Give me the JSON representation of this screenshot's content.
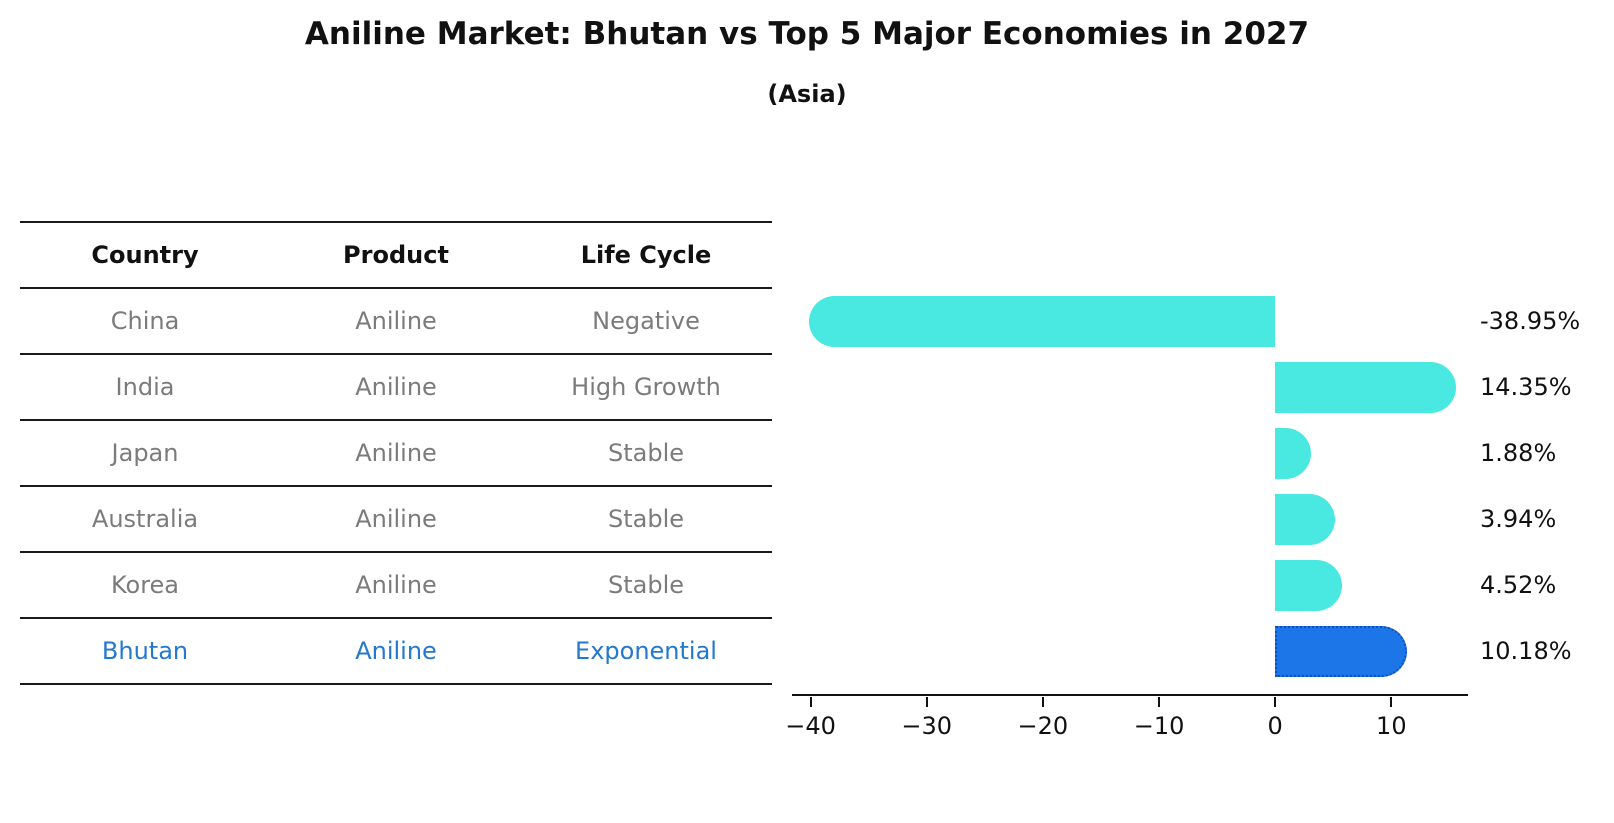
{
  "header": {
    "title": "Aniline Market: Bhutan vs Top 5 Major Economies in 2027",
    "subtitle": "(Asia)"
  },
  "table": {
    "headers": [
      "Country",
      "Product",
      "Life Cycle"
    ],
    "rows": [
      {
        "country": "China",
        "product": "Aniline",
        "life_cycle": "Negative"
      },
      {
        "country": "India",
        "product": "Aniline",
        "life_cycle": "High Growth"
      },
      {
        "country": "Japan",
        "product": "Aniline",
        "life_cycle": "Stable"
      },
      {
        "country": "Australia",
        "product": "Aniline",
        "life_cycle": "Stable"
      },
      {
        "country": "Korea",
        "product": "Aniline",
        "life_cycle": "Stable"
      },
      {
        "country": "Bhutan",
        "product": "Aniline",
        "life_cycle": "Exponential"
      }
    ],
    "highlight_row": "Bhutan",
    "row_text_color": "#7b7b7b",
    "highlight_text_color": "#2478CE"
  },
  "chart_data": {
    "type": "bar",
    "orientation": "horizontal",
    "categories": [
      "China",
      "India",
      "Japan",
      "Australia",
      "Korea",
      "Bhutan"
    ],
    "values": [
      -38.95,
      14.35,
      1.88,
      3.94,
      4.52,
      10.18
    ],
    "value_labels": [
      "-38.95%",
      "14.35%",
      "1.88%",
      "3.94%",
      "4.52%",
      "10.18%"
    ],
    "title": "Aniline Market: Bhutan vs Top 5 Major Economies in 2027",
    "subtitle": "(Asia)",
    "xlabel": "",
    "ylabel": "",
    "xlim": [
      -41.6,
      16.6
    ],
    "x_ticks": [
      -40,
      -30,
      -20,
      -10,
      0,
      10
    ],
    "x_tick_labels": [
      "−40",
      "−30",
      "−20",
      "−10",
      "0",
      "10"
    ],
    "grid": false,
    "legend": false,
    "bar_color": "#49E8E1",
    "highlight_bar_color": "#1C76E8",
    "highlight_border_color": "#0E4FBF",
    "highlight_index": 5,
    "axis_color": "#111111"
  }
}
